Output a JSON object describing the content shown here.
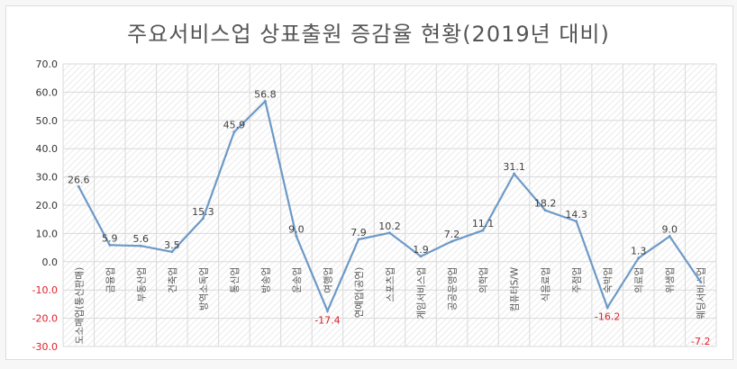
{
  "chart_data": {
    "type": "line",
    "title": "주요서비스업 상표출원 증감율 현황(2019년 대비)",
    "xlabel": "",
    "ylabel": "",
    "ylim": [
      -30,
      70
    ],
    "yticks": [
      "70.0",
      "60.0",
      "50.0",
      "40.0",
      "30.0",
      "20.0",
      "10.0",
      "0.0",
      "-10.0",
      "-20.0",
      "-30.0"
    ],
    "ytick_values": [
      70,
      60,
      50,
      40,
      30,
      20,
      10,
      0,
      -10,
      -20,
      -30
    ],
    "grid": true,
    "categories": [
      "도소매업(통신판매)",
      "금융업",
      "부동산업",
      "건축업",
      "방역소독업",
      "통신업",
      "방송업",
      "운송업",
      "여행업",
      "연예업(공연)",
      "스포츠업",
      "게임서비스업",
      "공공운영업",
      "의학업",
      "컴퓨터S/W",
      "식음료업",
      "주점업",
      "숙박업",
      "의료업",
      "위생업",
      "웨딩서비스업"
    ],
    "series": [
      {
        "name": "증감율",
        "values": [
          26.6,
          5.9,
          5.6,
          3.5,
          15.3,
          45.9,
          56.8,
          9.0,
          -17.4,
          7.9,
          10.2,
          1.9,
          7.2,
          11.1,
          31.1,
          18.2,
          14.3,
          -16.2,
          1.3,
          9.0,
          -7.2
        ]
      }
    ],
    "colors": {
      "line": "#6d99c6",
      "label": "#404040",
      "negative_label": "#e0202a",
      "grid": "#d9d9d9"
    }
  }
}
